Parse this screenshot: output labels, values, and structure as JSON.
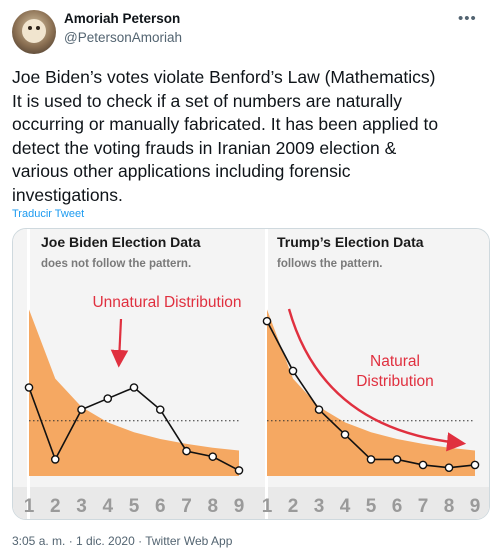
{
  "author": {
    "name": "Amoriah Peterson",
    "handle": "@PetersonAmoriah"
  },
  "tweet": {
    "lines": [
      "Joe Biden’s votes violate Benford’s Law (Mathematics)",
      "It is used to check if a set of numbers are naturally",
      "occurring or manually fabricated. It has been applied to",
      "detect the voting frauds in Iranian 2009 election &",
      "various other applications including forensic",
      "investigations."
    ],
    "translate_label": "Traducir Tweet",
    "timestamp": "3:05 a. m. · 1 dic. 2020",
    "source": "Twitter Web App"
  },
  "icons": {
    "more": "more-options-icon"
  },
  "colors": {
    "accent": "#1d9bf0",
    "benford_fill": "#f5a862",
    "annotation": "#e0303f"
  },
  "chart_data": [
    {
      "type": "line",
      "title": "Joe Biden Election Data",
      "subtitle": "does not follow the pattern.",
      "annotation": "Unnatural Distribution",
      "x": [
        "1",
        "2",
        "3",
        "4",
        "5",
        "6",
        "7",
        "8",
        "9"
      ],
      "benford": [
        30.1,
        17.6,
        12.5,
        9.7,
        7.9,
        6.7,
        5.8,
        5.1,
        4.6
      ],
      "values": [
        16,
        3,
        12,
        14,
        16,
        12,
        4.5,
        3.5,
        1
      ],
      "reference_line": 10
    },
    {
      "type": "line",
      "title": "Trump’s Election Data",
      "subtitle": "follows the pattern.",
      "annotation": "Natural Distribution",
      "x": [
        "1",
        "2",
        "3",
        "4",
        "5",
        "6",
        "7",
        "8",
        "9"
      ],
      "benford": [
        30.1,
        17.6,
        12.5,
        9.7,
        7.9,
        6.7,
        5.8,
        5.1,
        4.6
      ],
      "values": [
        28,
        19,
        12,
        7.5,
        3,
        3,
        2,
        1.5,
        2
      ],
      "reference_line": 10
    }
  ]
}
